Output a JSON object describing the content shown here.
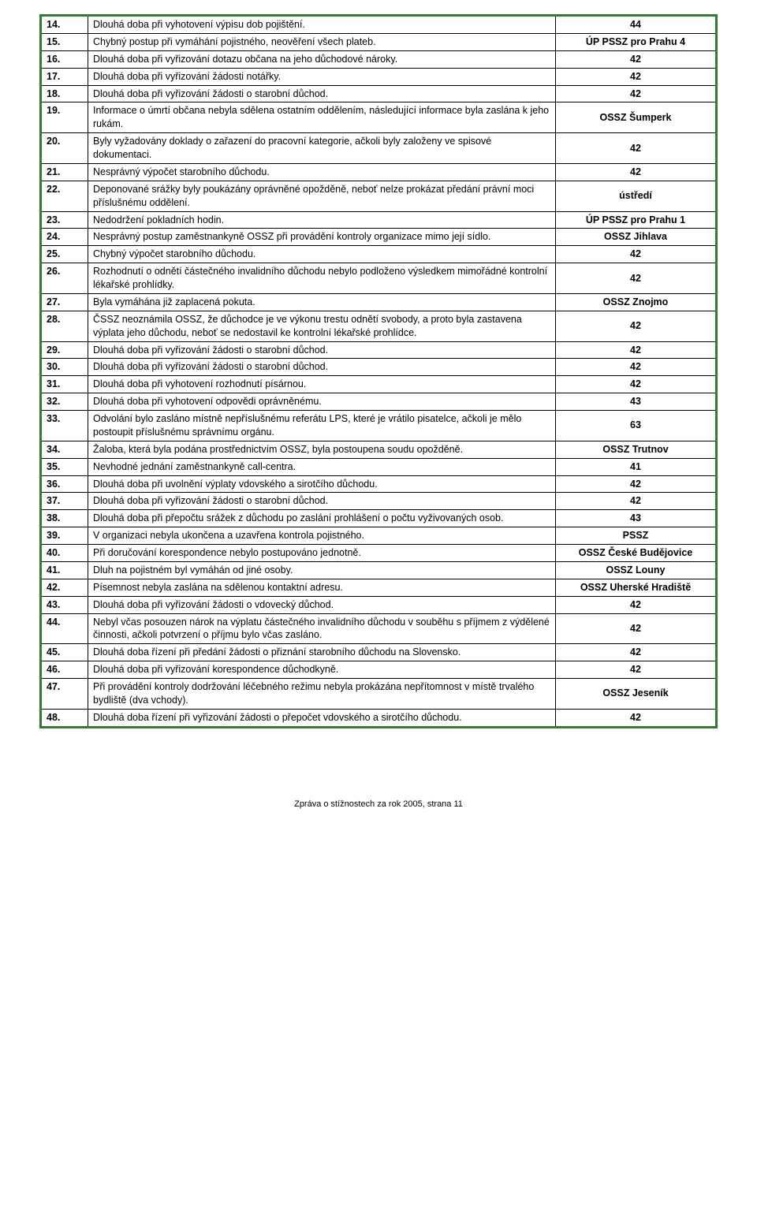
{
  "rows": [
    {
      "n": "14.",
      "desc": "Dlouhá doba při vyhotovení výpisu dob pojištění.",
      "res": "44"
    },
    {
      "n": "15.",
      "desc": "Chybný postup při vymáhání pojistného, neověření všech plateb.",
      "res": "ÚP PSSZ pro Prahu 4"
    },
    {
      "n": "16.",
      "desc": "Dlouhá doba při vyřizování dotazu občana na jeho důchodové nároky.",
      "res": "42"
    },
    {
      "n": "17.",
      "desc": "Dlouhá doba při vyřizování žádosti notářky.",
      "res": "42"
    },
    {
      "n": "18.",
      "desc": "Dlouhá doba při vyřizování žádosti o starobní důchod.",
      "res": "42"
    },
    {
      "n": "19.",
      "desc": "Informace o úmrtí občana nebyla sdělena ostatním oddělením, následující informace byla zaslána k jeho rukám.",
      "res": "OSSZ Šumperk"
    },
    {
      "n": "20.",
      "desc": "Byly vyžadovány doklady o zařazení do pracovní kategorie, ačkoli byly založeny ve spisové dokumentaci.",
      "res": "42"
    },
    {
      "n": "21.",
      "desc": "Nesprávný výpočet starobního důchodu.",
      "res": "42"
    },
    {
      "n": "22.",
      "desc": "Deponované srážky byly poukázány oprávněné opožděně, neboť nelze prokázat předání právní moci příslušnému oddělení.",
      "res": "ústředí"
    },
    {
      "n": "23.",
      "desc": "Nedodržení pokladních hodin.",
      "res": "ÚP PSSZ pro Prahu 1"
    },
    {
      "n": "24.",
      "desc": "Nesprávný postup zaměstnankyně OSSZ při provádění kontroly organizace mimo její sídlo.",
      "res": "OSSZ Jihlava"
    },
    {
      "n": "25.",
      "desc": "Chybný výpočet starobního důchodu.",
      "res": "42"
    },
    {
      "n": "26.",
      "desc": "Rozhodnutí o odnětí částečného invalidního důchodu nebylo podloženo  výsledkem mimořádné kontrolní lékařské prohlídky.",
      "res": "42"
    },
    {
      "n": "27.",
      "desc": "Byla vymáhána již zaplacená pokuta.",
      "res": "OSSZ Znojmo"
    },
    {
      "n": "28.",
      "desc": "ČSSZ neoznámila OSSZ, že důchodce je ve výkonu trestu odnětí svobody, a proto byla zastavena výplata jeho důchodu, neboť se nedostavil ke kontrolní lékařské prohlídce.",
      "res": "42"
    },
    {
      "n": "29.",
      "desc": "Dlouhá doba při vyřizování žádosti o starobní důchod.",
      "res": "42"
    },
    {
      "n": "30.",
      "desc": "Dlouhá doba při vyřizování žádosti o starobní důchod.",
      "res": "42"
    },
    {
      "n": "31.",
      "desc": "Dlouhá doba při vyhotovení rozhodnutí písárnou.",
      "res": "42"
    },
    {
      "n": "32.",
      "desc": "Dlouhá doba při vyhotovení odpovědi oprávněnému.",
      "res": "43"
    },
    {
      "n": "33.",
      "desc": "Odvolání bylo zasláno místně nepříslušnému referátu LPS, které je vrátilo pisatelce, ačkoli je mělo postoupit příslušnému  správnímu orgánu.",
      "res": "63"
    },
    {
      "n": "34.",
      "desc": "Žaloba, která byla podána prostřednictvím OSSZ, byla postoupena soudu opožděně.",
      "res": "OSSZ Trutnov"
    },
    {
      "n": "35.",
      "desc": "Nevhodné jednání zaměstnankyně call-centra.",
      "res": "41"
    },
    {
      "n": "36.",
      "desc": "Dlouhá doba při uvolnění výplaty vdovského a sirotčího důchodu.",
      "res": "42"
    },
    {
      "n": "37.",
      "desc": "Dlouhá doba při vyřizování žádosti o starobní důchod.",
      "res": "42"
    },
    {
      "n": "38.",
      "desc": "Dlouhá doba při přepočtu srážek z důchodu po zaslání prohlášení o počtu vyživovaných osob.",
      "res": "43"
    },
    {
      "n": "39.",
      "desc": "V organizaci nebyla ukončena a uzavřena kontrola pojistného.",
      "res": "PSSZ"
    },
    {
      "n": "40.",
      "desc": "Při doručování korespondence nebylo postupováno jednotně.",
      "res": "OSSZ České Budějovice"
    },
    {
      "n": "41.",
      "desc": "Dluh na pojistném byl vymáhán od jiné osoby.",
      "res": "OSSZ Louny"
    },
    {
      "n": "42.",
      "desc": "Písemnost nebyla zaslána na sdělenou kontaktní adresu.",
      "res": "OSSZ Uherské Hradiště"
    },
    {
      "n": "43.",
      "desc": "Dlouhá doba při vyřizování žádosti o vdovecký důchod.",
      "res": "42"
    },
    {
      "n": "44.",
      "desc": "Nebyl včas posouzen nárok na výplatu částečného invalidního důchodu v souběhu s příjmem z výdělené činnosti, ačkoli potvrzení o příjmu bylo včas zasláno.",
      "res": "42"
    },
    {
      "n": "45.",
      "desc": "Dlouhá doba řízení při předání žádosti o přiznání starobního důchodu na Slovensko.",
      "res": "42"
    },
    {
      "n": "46.",
      "desc": "Dlouhá doba při vyřizování korespondence důchodkyně.",
      "res": "42"
    },
    {
      "n": "47.",
      "desc": "Při provádění kontroly dodržování léčebného režimu nebyla prokázána nepřítomnost v místě trvalého bydliště (dva vchody).",
      "res": "OSSZ Jeseník"
    },
    {
      "n": "48.",
      "desc": "Dlouhá doba řízení  při vyřizování žádosti o přepočet vdovského a sirotčího důchodu.",
      "res": "42"
    }
  ],
  "footer": "Zpráva o stížnostech za rok 2005, strana 11"
}
